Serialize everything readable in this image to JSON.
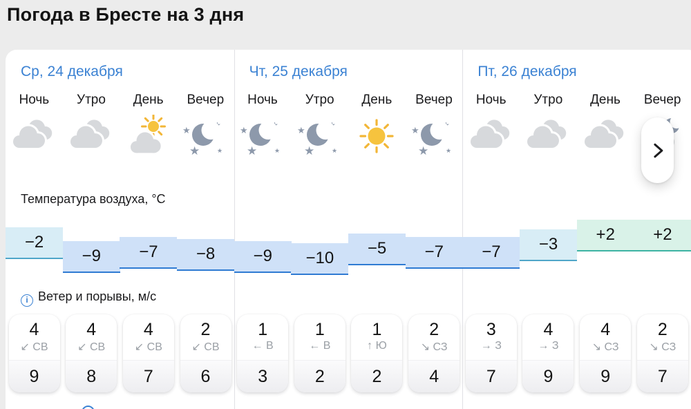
{
  "page": {
    "title": "Погода в Бресте на 3 дня"
  },
  "colors": {
    "accent": "#3b82d3",
    "temp_cold_fill": "#cfe1f8",
    "temp_cold_line": "#2f7bd3",
    "temp_mild_fill": "#d8edf6",
    "temp_mild_line": "#4fa6c9",
    "temp_warm_fill": "#d9f2e8",
    "temp_warm_line": "#3db3a3"
  },
  "sections": {
    "temperature": "Температура воздуха, °C",
    "wind": "Ветер и порывы, м/с",
    "info_icon_glyph": "i"
  },
  "times": [
    "Ночь",
    "Утро",
    "День",
    "Вечер"
  ],
  "days": [
    {
      "date": "Ср, 24 декабря",
      "icons": [
        "cloudy",
        "cloudy",
        "partly-cloudy-day",
        "clear-night"
      ],
      "temps": [
        -2,
        -9,
        -7,
        -8
      ],
      "temp_labels": [
        "−2",
        "−9",
        "−7",
        "−8"
      ],
      "wind": [
        {
          "speed": "4",
          "arrow": "↙",
          "dir": "СВ",
          "gust": "9"
        },
        {
          "speed": "4",
          "arrow": "↙",
          "dir": "СВ",
          "gust": "8"
        },
        {
          "speed": "4",
          "arrow": "↙",
          "dir": "СВ",
          "gust": "7"
        },
        {
          "speed": "2",
          "arrow": "↙",
          "dir": "СВ",
          "gust": "6"
        }
      ]
    },
    {
      "date": "Чт, 25 декабря",
      "icons": [
        "clear-night",
        "clear-night",
        "sunny",
        "clear-night"
      ],
      "temps": [
        -9,
        -10,
        -5,
        -7
      ],
      "temp_labels": [
        "−9",
        "−10",
        "−5",
        "−7"
      ],
      "wind": [
        {
          "speed": "1",
          "arrow": "←",
          "dir": "В",
          "gust": "3"
        },
        {
          "speed": "1",
          "arrow": "←",
          "dir": "В",
          "gust": "2"
        },
        {
          "speed": "1",
          "arrow": "↑",
          "dir": "Ю",
          "gust": "2"
        },
        {
          "speed": "2",
          "arrow": "↘",
          "dir": "СЗ",
          "gust": "4"
        }
      ]
    },
    {
      "date": "Пт, 26 декабря",
      "icons": [
        "cloudy",
        "cloudy",
        "cloudy",
        "cloudy-night"
      ],
      "temps": [
        -7,
        -3,
        2,
        2
      ],
      "temp_labels": [
        "−7",
        "−3",
        "+2",
        "+2"
      ],
      "wind": [
        {
          "speed": "3",
          "arrow": "→",
          "dir": "З",
          "gust": "7"
        },
        {
          "speed": "4",
          "arrow": "→",
          "dir": "З",
          "gust": "9"
        },
        {
          "speed": "4",
          "arrow": "↘",
          "dir": "СЗ",
          "gust": "9"
        },
        {
          "speed": "2",
          "arrow": "↘",
          "dir": "СЗ",
          "gust": "7"
        }
      ]
    }
  ],
  "next_button": {
    "icon": "chevron-right"
  },
  "chart_data": {
    "type": "area",
    "title": "Температура воздуха, °C",
    "x": [
      "Ср ночь",
      "Ср утро",
      "Ср день",
      "Ср вечер",
      "Чт ночь",
      "Чт утро",
      "Чт день",
      "Чт вечер",
      "Пт ночь",
      "Пт утро",
      "Пт день",
      "Пт вечер"
    ],
    "values": [
      -2,
      -9,
      -7,
      -8,
      -9,
      -10,
      -5,
      -7,
      -7,
      -3,
      2,
      2
    ],
    "wind_speed": [
      4,
      4,
      4,
      2,
      1,
      1,
      1,
      2,
      3,
      4,
      4,
      2
    ],
    "wind_gust": [
      9,
      8,
      7,
      6,
      3,
      2,
      2,
      4,
      7,
      9,
      9,
      7
    ],
    "wind_dir": [
      "СВ",
      "СВ",
      "СВ",
      "СВ",
      "В",
      "В",
      "Ю",
      "СЗ",
      "З",
      "З",
      "СЗ",
      "СЗ"
    ],
    "ylim": [
      -12,
      4
    ],
    "grid": false,
    "legend": false
  }
}
